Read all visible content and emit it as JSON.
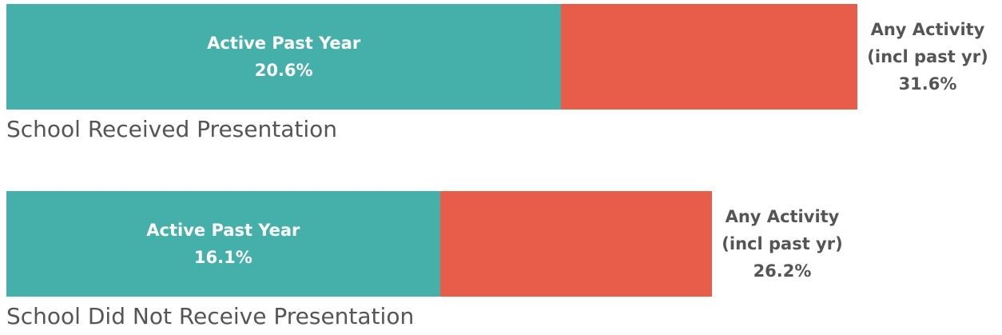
{
  "chart_data": {
    "type": "bar",
    "orientation": "horizontal",
    "categories": [
      "School Received Presentation",
      "School Did Not Receive Presentation"
    ],
    "series": [
      {
        "name": "Active Past Year",
        "color": "#45b0a9",
        "values": [
          20.6,
          16.1
        ],
        "value_labels": [
          "20.6%",
          "16.1%"
        ]
      },
      {
        "name": "Any Activity (incl past yr)",
        "color": "#e85c4a",
        "values": [
          31.6,
          26.2
        ],
        "value_labels": [
          "31.6%",
          "26.2%"
        ]
      }
    ]
  }
}
